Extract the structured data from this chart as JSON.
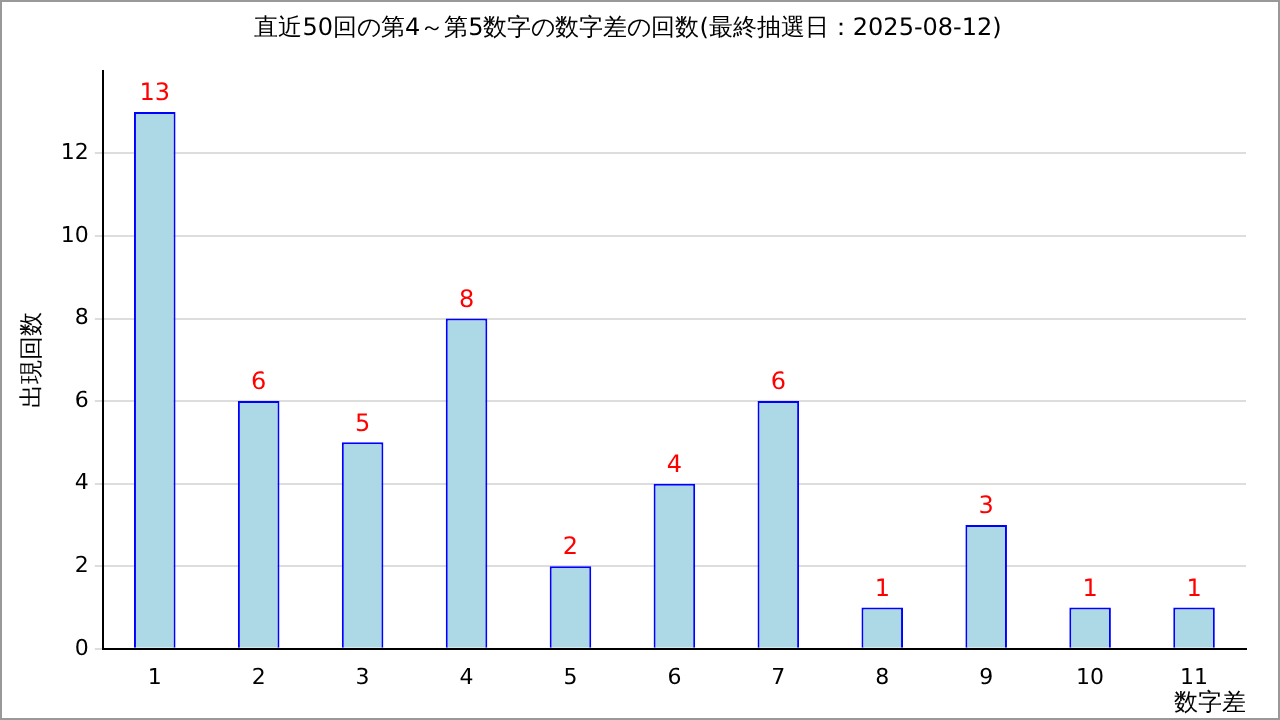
{
  "chart_data": {
    "type": "bar",
    "title": "直近50回の第4～第5数字の数字差の回数(最終抽選日：2025-08-12)",
    "xlabel": "数字差",
    "ylabel": "出現回数",
    "categories": [
      "1",
      "2",
      "3",
      "4",
      "5",
      "6",
      "7",
      "8",
      "9",
      "10",
      "11"
    ],
    "values": [
      13,
      6,
      5,
      8,
      2,
      4,
      6,
      1,
      3,
      1,
      1
    ],
    "color": "#add8e6",
    "ylim": [
      0,
      14
    ],
    "yticks": [
      0,
      2,
      4,
      6,
      8,
      10,
      12
    ],
    "grid": "y",
    "data_labels": true,
    "legend": false
  }
}
